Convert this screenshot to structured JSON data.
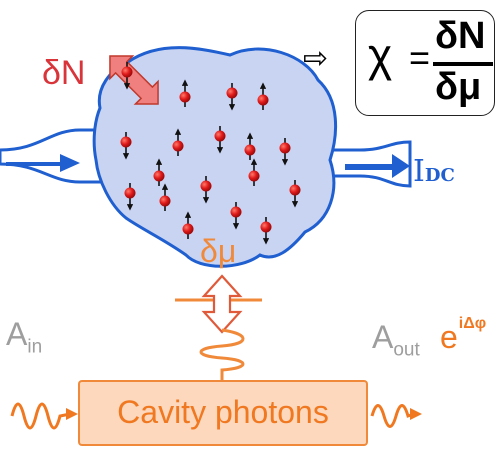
{
  "labels": {
    "delta_n": "δN",
    "delta_mu": "δμ",
    "implies": "⇨",
    "chi": "χ",
    "equals": "=",
    "numerator": "δN",
    "denominator": "δμ",
    "current": "I",
    "current_sub": "DC",
    "a_in": "A",
    "a_in_sub": "in",
    "a_out": "A",
    "a_out_sub": "out",
    "phase_base": "e",
    "phase_exp": "iΔφ",
    "cavity": "Cavity photons"
  },
  "colors": {
    "cloud_fill": "#c9d3f2",
    "cloud_stroke": "#1f5fd0",
    "particle": "#dd1f1f",
    "delta_n": "#d8343a",
    "orange": "#f07820",
    "gray_text": "#9e9e9e",
    "cavity_fill": "#fdd8bd"
  },
  "icons": {
    "implies": "implies-arrow-icon",
    "exchange": "double-headed-arrow-icon",
    "coupling": "vertical-double-arrow-icon"
  }
}
